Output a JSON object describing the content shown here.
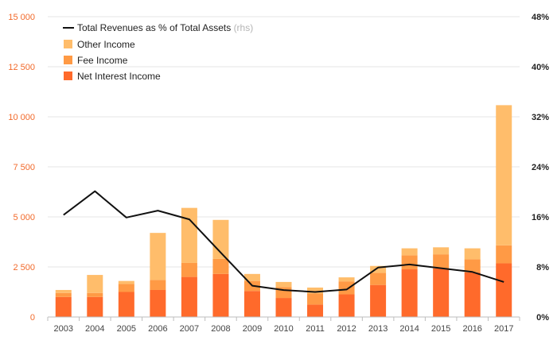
{
  "chart_data": {
    "type": "bar",
    "stacked": true,
    "categories": [
      "2003",
      "2004",
      "2005",
      "2006",
      "2007",
      "2008",
      "2009",
      "2010",
      "2011",
      "2012",
      "2013",
      "2014",
      "2015",
      "2016",
      "2017"
    ],
    "series": [
      {
        "name": "Net Interest Income",
        "color": "#ff6a2b",
        "values": [
          1000,
          1000,
          1250,
          1350,
          2000,
          2150,
          1300,
          950,
          620,
          1130,
          1600,
          2380,
          2430,
          2230,
          2680
        ]
      },
      {
        "name": "Fee Income",
        "color": "#ff9a45",
        "values": [
          200,
          200,
          400,
          500,
          700,
          750,
          500,
          550,
          550,
          650,
          600,
          700,
          700,
          650,
          900
        ]
      },
      {
        "name": "Other Income",
        "color": "#ffbd6b",
        "values": [
          150,
          900,
          150,
          2350,
          2750,
          1950,
          350,
          250,
          300,
          200,
          350,
          350,
          350,
          550,
          7000
        ]
      }
    ],
    "line_series": {
      "name": "Total Revenues as % of Total Assets",
      "name_suffix": "(rhs)",
      "color": "#111111",
      "axis": "right",
      "values": [
        16.3,
        20.1,
        15.9,
        17.0,
        15.6,
        10.3,
        5.0,
        4.3,
        4.0,
        4.4,
        7.9,
        8.4,
        7.8,
        7.2,
        5.6
      ]
    },
    "y_left": {
      "ylim": [
        0,
        15000
      ],
      "ticks": [
        0,
        2500,
        5000,
        7500,
        10000,
        12500,
        15000
      ],
      "tick_labels": [
        "0",
        "2 500",
        "5 000",
        "7 500",
        "10 000",
        "12 500",
        "15 000"
      ]
    },
    "y_right": {
      "ylim": [
        0,
        48
      ],
      "ticks": [
        0,
        8,
        16,
        24,
        32,
        40,
        48
      ],
      "tick_labels": [
        "0%",
        "8%",
        "16%",
        "24%",
        "32%",
        "40%",
        "48%"
      ]
    },
    "grid": true,
    "legend_position": "top-left",
    "title": "",
    "xlabel": "",
    "ylabel": ""
  }
}
